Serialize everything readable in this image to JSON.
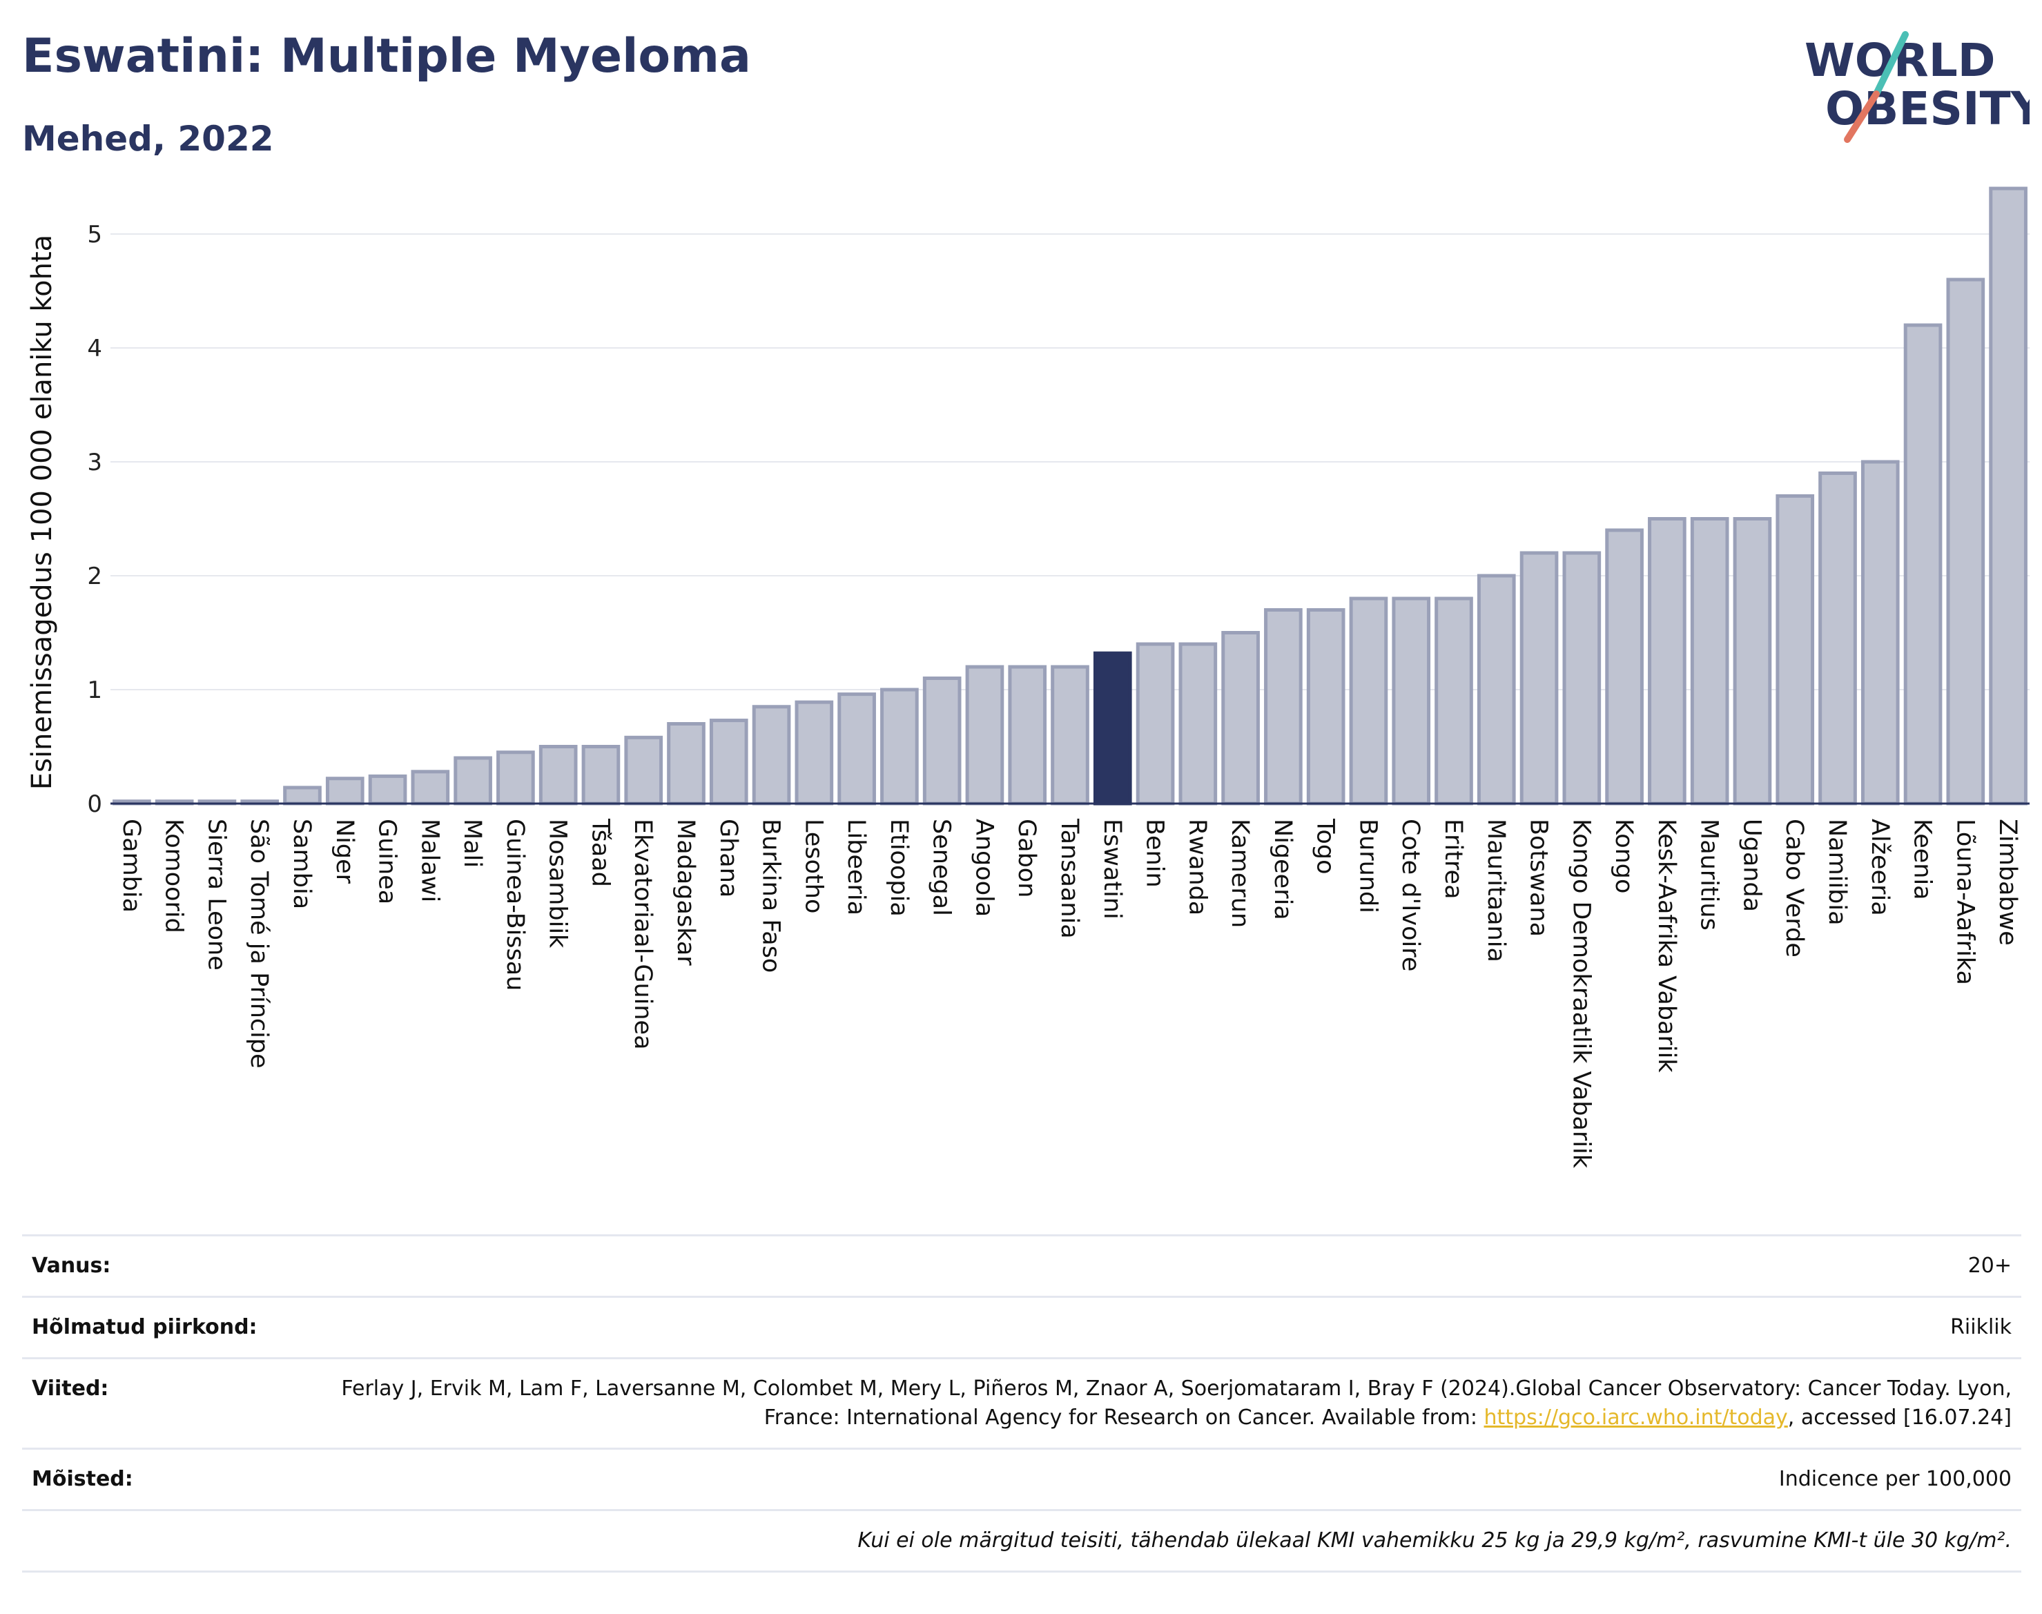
{
  "header": {
    "title": "Eswatini: Multiple Myeloma",
    "subtitle": "Mehed, 2022"
  },
  "logo": {
    "line1": "WORLD",
    "line2": "OBESITY",
    "text": "WORLD OBESITY"
  },
  "colors": {
    "highlight": "#2a3561",
    "bar_fill": "#bfc3d1",
    "bar_stroke": "#9aa0b8",
    "title": "#2a3561",
    "link": "#e5b82a"
  },
  "chart_data": {
    "type": "bar",
    "title": "Eswatini: Multiple Myeloma",
    "subtitle": "Mehed, 2022",
    "xlabel": "",
    "ylabel": "Esinemissagedus 100 000 elaniku kohta",
    "ylim": [
      0,
      5.6
    ],
    "yticks": [
      0,
      1,
      2,
      3,
      4,
      5
    ],
    "grid": true,
    "highlight": "Eswatini",
    "categories": [
      "Gambia",
      "Komoorid",
      "Sierra Leone",
      "São Tomé ja Príncipe",
      "Sambia",
      "Niger",
      "Guinea",
      "Malawi",
      "Mali",
      "Guinea-Bissau",
      "Mosambiik",
      "Tšaad",
      "Ekvatoriaal-Guinea",
      "Madagaskar",
      "Ghana",
      "Burkina Faso",
      "Lesotho",
      "Libeeria",
      "Etioopia",
      "Senegal",
      "Angoola",
      "Gabon",
      "Tansaania",
      "Eswatini",
      "Benin",
      "Rwanda",
      "Kamerun",
      "Nigeeria",
      "Togo",
      "Burundi",
      "Cote d'Ivoire",
      "Eritrea",
      "Mauritaania",
      "Botswana",
      "Kongo Demokraatlik Vabariik",
      "Kongo",
      "Kesk-Aafrika Vabariik",
      "Mauritius",
      "Uganda",
      "Cabo Verde",
      "Namiibia",
      "Alžeeria",
      "Keenia",
      "Lõuna-Aafrika",
      "Zimbabwe"
    ],
    "values": [
      0.02,
      0.02,
      0.02,
      0.02,
      0.14,
      0.22,
      0.24,
      0.28,
      0.4,
      0.45,
      0.5,
      0.5,
      0.58,
      0.7,
      0.73,
      0.85,
      0.89,
      0.96,
      1.0,
      1.1,
      1.2,
      1.2,
      1.2,
      1.32,
      1.4,
      1.4,
      1.5,
      1.7,
      1.7,
      1.8,
      1.8,
      1.8,
      2.0,
      2.2,
      2.2,
      2.4,
      2.5,
      2.5,
      2.5,
      2.7,
      2.9,
      3.0,
      4.2,
      4.6,
      5.4
    ]
  },
  "meta": {
    "age_label": "Vanus:",
    "age_value": "20+",
    "region_label": "Hõlmatud piirkond:",
    "region_value": "Riiklik",
    "refs_label": "Viited:",
    "refs_text": "Ferlay J, Ervik M, Lam F, Laversanne M, Colombet M, Mery L, Piñeros M, Znaor A, Soerjomataram I, Bray F (2024).Global Cancer Observatory: Cancer Today. Lyon, France: International Agency for Research on Cancer. Available from:",
    "refs_link": "https://gco.iarc.who.int/today",
    "refs_tail": ", accessed [16.07.24]",
    "defs_label": "Mõisted:",
    "defs_value": "Indicence per 100,000",
    "note": "Kui ei ole märgitud teisiti, tähendab ülekaal KMI vahemikku 25 kg ja 29,9 kg/m², rasvumine KMI-t üle 30 kg/m²."
  }
}
